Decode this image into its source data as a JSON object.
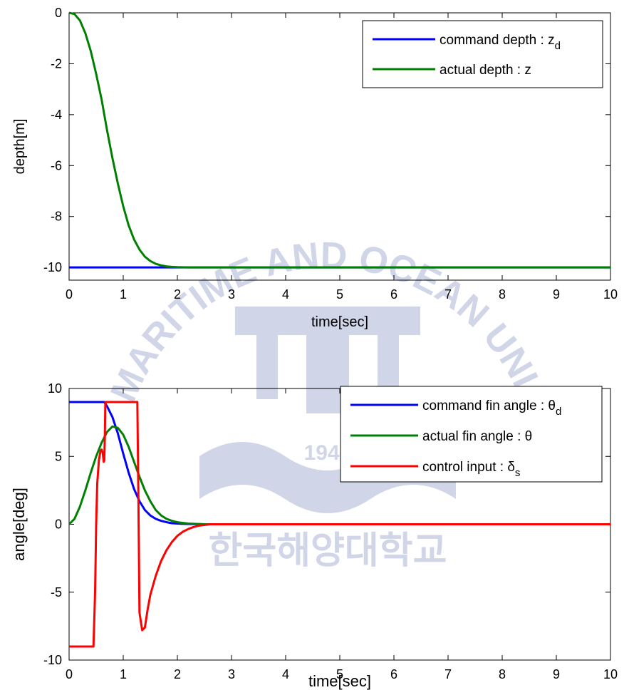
{
  "watermark": {
    "ring_text": "KOREA MARITIME AND OCEAN UNIVERSITY",
    "year": "1945",
    "hangul": "한국해양대학교"
  },
  "chart_data": [
    {
      "type": "line",
      "xlabel": "time[sec]",
      "ylabel": "depth[m]",
      "xlim": [
        0,
        10
      ],
      "ylim": [
        -10.5,
        0
      ],
      "xticks": [
        0,
        1,
        2,
        3,
        4,
        5,
        6,
        7,
        8,
        9,
        10
      ],
      "yticks": [
        0,
        -2,
        -4,
        -6,
        -8,
        -10
      ],
      "xtick_labels": [
        "0",
        "1",
        "2",
        "3",
        "4",
        "5",
        "6",
        "7",
        "8",
        "9",
        "10"
      ],
      "ytick_labels": [
        "0",
        "-2",
        "-4",
        "-6",
        "-8",
        "-10"
      ],
      "grid": false,
      "legend_position": "top-right",
      "series": [
        {
          "name": "command depth : z",
          "subscript": "d",
          "color": "#0000ff",
          "x": [
            0,
            10
          ],
          "y": [
            -10,
            -10
          ]
        },
        {
          "name": "actual depth : z",
          "subscript": "",
          "color": "#008000",
          "x": [
            0,
            0.1,
            0.2,
            0.3,
            0.4,
            0.5,
            0.6,
            0.7,
            0.8,
            0.9,
            1.0,
            1.1,
            1.2,
            1.3,
            1.4,
            1.5,
            1.6,
            1.7,
            1.8,
            1.9,
            2.0,
            2.2,
            2.5,
            3.0,
            10
          ],
          "y": [
            0,
            -0.05,
            -0.3,
            -0.8,
            -1.5,
            -2.4,
            -3.4,
            -4.6,
            -5.7,
            -6.7,
            -7.6,
            -8.35,
            -8.9,
            -9.3,
            -9.58,
            -9.75,
            -9.86,
            -9.92,
            -9.96,
            -9.98,
            -9.99,
            -10,
            -10,
            -10,
            -10
          ]
        }
      ]
    },
    {
      "type": "line",
      "xlabel": "time[sec]",
      "ylabel": "angle[deg]",
      "xlim": [
        0,
        10
      ],
      "ylim": [
        -10,
        10
      ],
      "xticks": [
        0,
        1,
        2,
        3,
        4,
        5,
        6,
        7,
        8,
        9,
        10
      ],
      "yticks": [
        10,
        5,
        0,
        -5,
        -10
      ],
      "xtick_labels": [
        "0",
        "1",
        "2",
        "3",
        "4",
        "5",
        "6",
        "7",
        "8",
        "9",
        "10"
      ],
      "ytick_labels": [
        "10",
        "5",
        "0",
        "-5",
        "-10"
      ],
      "grid": false,
      "legend_position": "top-right",
      "series": [
        {
          "name": "command fin angle : θ",
          "subscript": "d",
          "color": "#0000ff",
          "x": [
            0,
            0.65,
            0.7,
            0.8,
            0.9,
            1.0,
            1.1,
            1.2,
            1.3,
            1.4,
            1.5,
            1.6,
            1.7,
            1.8,
            1.9,
            2.0,
            2.2,
            2.5,
            10
          ],
          "y": [
            9,
            9,
            8.7,
            7.9,
            6.7,
            5.2,
            3.8,
            2.6,
            1.7,
            1.05,
            0.65,
            0.4,
            0.25,
            0.15,
            0.08,
            0.05,
            0.02,
            0,
            0
          ]
        },
        {
          "name": "actual fin angle : θ",
          "subscript": "",
          "color": "#008000",
          "x": [
            0,
            0.1,
            0.2,
            0.3,
            0.4,
            0.5,
            0.6,
            0.7,
            0.8,
            0.9,
            1.0,
            1.1,
            1.2,
            1.3,
            1.4,
            1.5,
            1.6,
            1.7,
            1.8,
            1.9,
            2.0,
            2.2,
            2.5,
            10
          ],
          "y": [
            0,
            0.4,
            1.3,
            2.5,
            3.8,
            5.0,
            6.0,
            6.8,
            7.2,
            7.1,
            6.6,
            5.7,
            4.6,
            3.5,
            2.5,
            1.7,
            1.05,
            0.65,
            0.4,
            0.25,
            0.15,
            0.05,
            0,
            0
          ]
        },
        {
          "name": "control input : δ",
          "subscript": "s",
          "color": "#ff0000",
          "x": [
            0,
            0.45,
            0.48,
            0.5,
            0.52,
            0.55,
            0.58,
            0.6,
            0.62,
            0.64,
            0.65,
            0.66,
            0.67,
            0.7,
            1.26,
            1.28,
            1.3,
            1.35,
            1.4,
            1.45,
            1.5,
            1.6,
            1.7,
            1.8,
            1.9,
            2.0,
            2.1,
            2.2,
            2.3,
            2.4,
            2.6,
            10
          ],
          "y": [
            -9,
            -9,
            -5,
            0,
            3,
            4.7,
            5.4,
            5.5,
            5.3,
            4.6,
            4.7,
            6.5,
            9,
            9,
            9,
            2,
            -6.5,
            -7.8,
            -7.6,
            -6.3,
            -5.2,
            -3.8,
            -2.7,
            -1.9,
            -1.3,
            -0.85,
            -0.55,
            -0.35,
            -0.2,
            -0.1,
            0,
            0
          ]
        }
      ]
    }
  ]
}
